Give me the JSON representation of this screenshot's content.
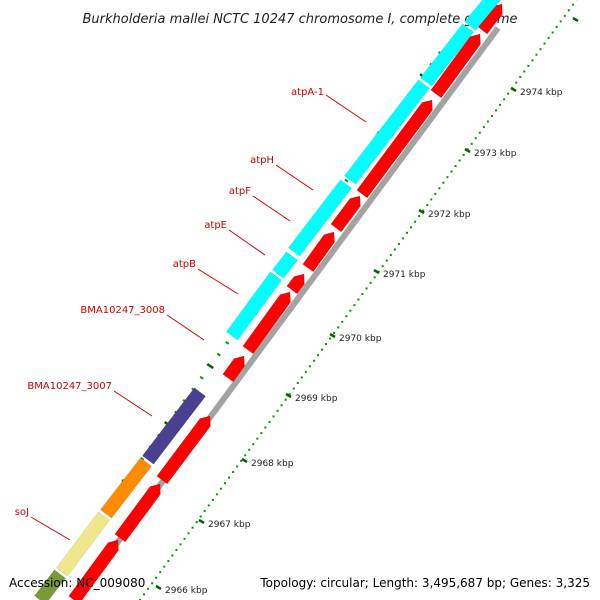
{
  "title": "Burkholderia mallei NCTC 10247 chromosome I, complete genome",
  "footer": {
    "accession": "Accession: NC_009080",
    "topology": "Topology: circular; Length: 3,495,687 bp; Genes: 3,325"
  },
  "colors": {
    "label": "#cc0000",
    "forward_cds": "#ff0000",
    "atp_genes": "#00ffff",
    "BMA10247_3007": "#4b3f8f",
    "orange_gene": "#ff8c00",
    "soJ": "#f0e68c",
    "green_gene": "#7a9a3a",
    "backbone": "#999999",
    "tick_major": "#006600",
    "tick_minor": "#009900"
  },
  "ticks": [
    "2966 kbp",
    "2967 kbp",
    "2968 kbp",
    "2969 kbp",
    "2970 kbp",
    "2971 kbp",
    "2972 kbp",
    "2973 kbp",
    "2974 kbp"
  ],
  "gene_labels": [
    "atpA-1",
    "atpH",
    "atpF",
    "atpE",
    "atpB",
    "BMA10247_3008",
    "BMA10247_3007",
    "soJ"
  ]
}
